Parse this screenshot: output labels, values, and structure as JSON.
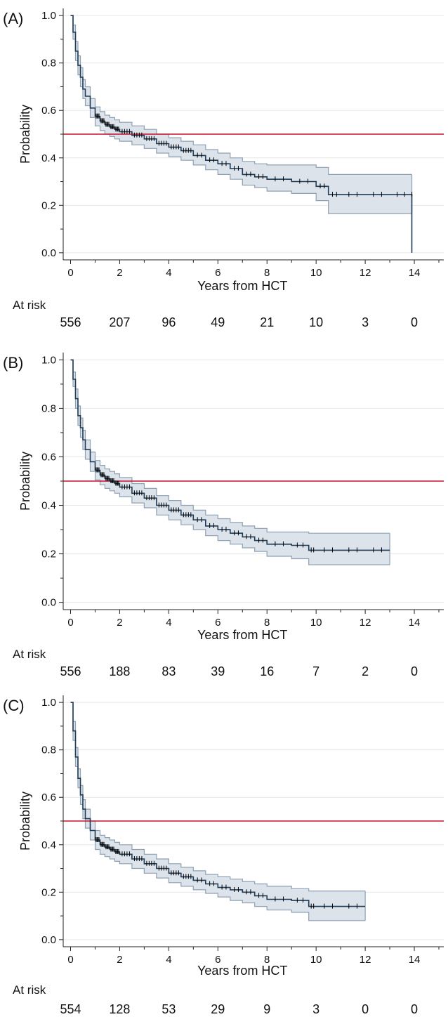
{
  "colors": {
    "curve": "#1f3b57",
    "band_fill": "#dde3ea",
    "band_line": "#8ea0b3",
    "reference_line": "#c8102e",
    "grid": "#e6e6e6",
    "axis": "#222222"
  },
  "chart_data": [
    {
      "type": "line",
      "panel_label": "(A)",
      "xlabel": "Years from HCT",
      "ylabel": "Probability",
      "xlim": [
        -0.3,
        15.2
      ],
      "ylim": [
        -0.03,
        1.03
      ],
      "x_ticks": [
        "0",
        "2",
        "4",
        "6",
        "8",
        "10",
        "12",
        "14"
      ],
      "y_ticks": [
        "0.0",
        "0.2",
        "0.4",
        "0.6",
        "0.8",
        "1.0"
      ],
      "grid": true,
      "reference_line": 0.5,
      "at_risk_label": "At risk",
      "at_risk_times": [
        0,
        2,
        4,
        6,
        8,
        10,
        12,
        14
      ],
      "at_risk": [
        "556",
        "207",
        "96",
        "49",
        "21",
        "10",
        "3",
        "0"
      ],
      "series": [
        {
          "role": "estimate",
          "x": [
            0,
            0.1,
            0.2,
            0.3,
            0.4,
            0.5,
            0.6,
            0.8,
            1.0,
            1.2,
            1.4,
            1.6,
            1.8,
            2.0,
            2.5,
            3.0,
            3.5,
            4.0,
            4.5,
            5.0,
            5.5,
            6.0,
            6.5,
            7.0,
            7.5,
            8.0,
            9.0,
            10.0,
            10.5,
            11.0,
            12.0,
            13.0,
            13.9,
            13.9
          ],
          "y": [
            1.0,
            0.93,
            0.85,
            0.79,
            0.74,
            0.69,
            0.66,
            0.61,
            0.575,
            0.555,
            0.54,
            0.53,
            0.52,
            0.51,
            0.495,
            0.48,
            0.46,
            0.445,
            0.43,
            0.41,
            0.39,
            0.375,
            0.355,
            0.33,
            0.32,
            0.31,
            0.3,
            0.28,
            0.245,
            0.245,
            0.245,
            0.245,
            0.245,
            0.0
          ]
        },
        {
          "role": "upper",
          "x": [
            0,
            0.1,
            0.2,
            0.3,
            0.4,
            0.5,
            0.6,
            0.8,
            1.0,
            1.2,
            1.4,
            1.6,
            1.8,
            2.0,
            2.5,
            3.0,
            3.5,
            4.0,
            4.5,
            5.0,
            5.5,
            6.0,
            6.5,
            7.0,
            7.5,
            8.0,
            9.0,
            10.0,
            10.5,
            11.0,
            12.0,
            13.0,
            13.9
          ],
          "y": [
            1.0,
            0.96,
            0.89,
            0.83,
            0.78,
            0.73,
            0.7,
            0.65,
            0.615,
            0.595,
            0.58,
            0.57,
            0.56,
            0.55,
            0.535,
            0.52,
            0.5,
            0.485,
            0.47,
            0.455,
            0.435,
            0.42,
            0.4,
            0.385,
            0.375,
            0.37,
            0.37,
            0.36,
            0.33,
            0.33,
            0.33,
            0.33,
            0.33
          ]
        },
        {
          "role": "lower",
          "x": [
            0,
            0.1,
            0.2,
            0.3,
            0.4,
            0.5,
            0.6,
            0.8,
            1.0,
            1.2,
            1.4,
            1.6,
            1.8,
            2.0,
            2.5,
            3.0,
            3.5,
            4.0,
            4.5,
            5.0,
            5.5,
            6.0,
            6.5,
            7.0,
            7.5,
            8.0,
            9.0,
            10.0,
            10.5,
            11.0,
            12.0,
            13.0,
            13.9
          ],
          "y": [
            1.0,
            0.9,
            0.81,
            0.75,
            0.7,
            0.65,
            0.62,
            0.57,
            0.535,
            0.515,
            0.5,
            0.49,
            0.48,
            0.47,
            0.455,
            0.44,
            0.42,
            0.405,
            0.39,
            0.37,
            0.35,
            0.33,
            0.31,
            0.285,
            0.275,
            0.26,
            0.25,
            0.22,
            0.165,
            0.165,
            0.165,
            0.165,
            0.165
          ]
        }
      ]
    },
    {
      "type": "line",
      "panel_label": "(B)",
      "xlabel": "Years from HCT",
      "ylabel": "Probability",
      "xlim": [
        -0.3,
        15.2
      ],
      "ylim": [
        -0.03,
        1.03
      ],
      "x_ticks": [
        "0",
        "2",
        "4",
        "6",
        "8",
        "10",
        "12",
        "14"
      ],
      "y_ticks": [
        "0.0",
        "0.2",
        "0.4",
        "0.6",
        "0.8",
        "1.0"
      ],
      "grid": true,
      "reference_line": 0.5,
      "at_risk_label": "At risk",
      "at_risk_times": [
        0,
        2,
        4,
        6,
        8,
        10,
        12,
        14
      ],
      "at_risk": [
        "556",
        "188",
        "83",
        "39",
        "16",
        "7",
        "2",
        "0"
      ],
      "series": [
        {
          "role": "estimate",
          "x": [
            0,
            0.1,
            0.2,
            0.3,
            0.4,
            0.5,
            0.6,
            0.8,
            1.0,
            1.2,
            1.4,
            1.6,
            1.8,
            2.0,
            2.5,
            3.0,
            3.5,
            4.0,
            4.5,
            5.0,
            5.5,
            6.0,
            6.5,
            7.0,
            7.5,
            8.0,
            9.0,
            9.7,
            10.0,
            11.0,
            12.0,
            13.0
          ],
          "y": [
            1.0,
            0.92,
            0.84,
            0.77,
            0.72,
            0.67,
            0.63,
            0.58,
            0.545,
            0.525,
            0.51,
            0.5,
            0.49,
            0.475,
            0.45,
            0.43,
            0.4,
            0.38,
            0.36,
            0.34,
            0.315,
            0.3,
            0.285,
            0.27,
            0.255,
            0.24,
            0.235,
            0.215,
            0.215,
            0.215,
            0.215,
            0.215
          ]
        },
        {
          "role": "upper",
          "x": [
            0,
            0.1,
            0.2,
            0.3,
            0.4,
            0.5,
            0.6,
            0.8,
            1.0,
            1.2,
            1.4,
            1.6,
            1.8,
            2.0,
            2.5,
            3.0,
            3.5,
            4.0,
            4.5,
            5.0,
            5.5,
            6.0,
            6.5,
            7.0,
            7.5,
            8.0,
            9.0,
            9.7,
            10.0,
            11.0,
            12.0,
            13.0
          ],
          "y": [
            1.0,
            0.95,
            0.88,
            0.81,
            0.76,
            0.71,
            0.67,
            0.62,
            0.585,
            0.565,
            0.55,
            0.54,
            0.53,
            0.515,
            0.49,
            0.47,
            0.44,
            0.42,
            0.4,
            0.38,
            0.36,
            0.345,
            0.33,
            0.315,
            0.305,
            0.29,
            0.29,
            0.285,
            0.285,
            0.285,
            0.285,
            0.285
          ]
        },
        {
          "role": "lower",
          "x": [
            0,
            0.1,
            0.2,
            0.3,
            0.4,
            0.5,
            0.6,
            0.8,
            1.0,
            1.2,
            1.4,
            1.6,
            1.8,
            2.0,
            2.5,
            3.0,
            3.5,
            4.0,
            4.5,
            5.0,
            5.5,
            6.0,
            6.5,
            7.0,
            7.5,
            8.0,
            9.0,
            9.7,
            10.0,
            11.0,
            12.0,
            13.0
          ],
          "y": [
            1.0,
            0.89,
            0.8,
            0.73,
            0.68,
            0.63,
            0.59,
            0.54,
            0.505,
            0.485,
            0.47,
            0.46,
            0.45,
            0.435,
            0.41,
            0.39,
            0.36,
            0.34,
            0.32,
            0.3,
            0.275,
            0.255,
            0.24,
            0.225,
            0.21,
            0.19,
            0.18,
            0.155,
            0.155,
            0.155,
            0.155,
            0.155
          ]
        }
      ]
    },
    {
      "type": "line",
      "panel_label": "(C)",
      "xlabel": "Years from HCT",
      "ylabel": "Probability",
      "xlim": [
        -0.3,
        15.2
      ],
      "ylim": [
        -0.03,
        1.03
      ],
      "x_ticks": [
        "0",
        "2",
        "4",
        "6",
        "8",
        "10",
        "12",
        "14"
      ],
      "y_ticks": [
        "0.0",
        "0.2",
        "0.4",
        "0.6",
        "0.8",
        "1.0"
      ],
      "grid": true,
      "reference_line": 0.5,
      "at_risk_label": "At risk",
      "at_risk_times": [
        0,
        2,
        4,
        6,
        8,
        10,
        12,
        14
      ],
      "at_risk": [
        "554",
        "128",
        "53",
        "29",
        "9",
        "3",
        "0",
        "0"
      ],
      "series": [
        {
          "role": "estimate",
          "x": [
            0,
            0.1,
            0.2,
            0.3,
            0.4,
            0.5,
            0.6,
            0.8,
            1.0,
            1.2,
            1.4,
            1.6,
            1.8,
            2.0,
            2.5,
            3.0,
            3.5,
            4.0,
            4.5,
            5.0,
            5.5,
            6.0,
            6.5,
            7.0,
            7.5,
            8.0,
            9.0,
            9.7,
            10.0,
            11.0,
            12.0
          ],
          "y": [
            1.0,
            0.88,
            0.77,
            0.68,
            0.61,
            0.55,
            0.51,
            0.46,
            0.42,
            0.4,
            0.39,
            0.38,
            0.37,
            0.36,
            0.34,
            0.32,
            0.3,
            0.28,
            0.265,
            0.25,
            0.235,
            0.22,
            0.21,
            0.2,
            0.185,
            0.17,
            0.165,
            0.14,
            0.14,
            0.14,
            0.14
          ]
        },
        {
          "role": "upper",
          "x": [
            0,
            0.1,
            0.2,
            0.3,
            0.4,
            0.5,
            0.6,
            0.8,
            1.0,
            1.2,
            1.4,
            1.6,
            1.8,
            2.0,
            2.5,
            3.0,
            3.5,
            4.0,
            4.5,
            5.0,
            5.5,
            6.0,
            6.5,
            7.0,
            7.5,
            8.0,
            9.0,
            9.7,
            10.0,
            11.0,
            12.0
          ],
          "y": [
            1.0,
            0.92,
            0.81,
            0.72,
            0.65,
            0.59,
            0.55,
            0.5,
            0.46,
            0.44,
            0.43,
            0.42,
            0.41,
            0.4,
            0.38,
            0.36,
            0.34,
            0.32,
            0.305,
            0.29,
            0.275,
            0.265,
            0.255,
            0.245,
            0.235,
            0.225,
            0.215,
            0.205,
            0.205,
            0.205,
            0.205
          ]
        },
        {
          "role": "lower",
          "x": [
            0,
            0.1,
            0.2,
            0.3,
            0.4,
            0.5,
            0.6,
            0.8,
            1.0,
            1.2,
            1.4,
            1.6,
            1.8,
            2.0,
            2.5,
            3.0,
            3.5,
            4.0,
            4.5,
            5.0,
            5.5,
            6.0,
            6.5,
            7.0,
            7.5,
            8.0,
            9.0,
            9.7,
            10.0,
            11.0,
            12.0
          ],
          "y": [
            1.0,
            0.84,
            0.73,
            0.64,
            0.57,
            0.51,
            0.47,
            0.42,
            0.38,
            0.36,
            0.35,
            0.34,
            0.33,
            0.32,
            0.3,
            0.28,
            0.26,
            0.24,
            0.225,
            0.21,
            0.195,
            0.18,
            0.165,
            0.155,
            0.14,
            0.125,
            0.115,
            0.08,
            0.08,
            0.08,
            0.08
          ]
        }
      ]
    }
  ]
}
